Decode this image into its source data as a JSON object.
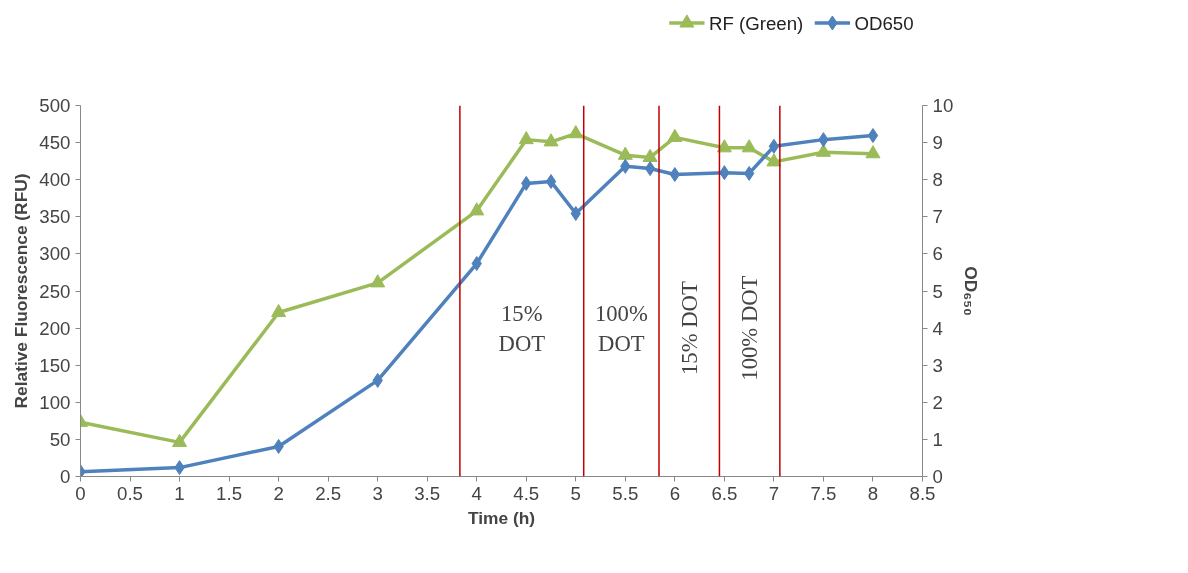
{
  "chart_data": {
    "type": "line",
    "xlabel": "Time (h)",
    "ylabel": "Relative Fluorescence (RFU)",
    "y2label": "OD₆₅₀",
    "xlim": [
      0,
      8.5
    ],
    "xticks": [
      0,
      0.5,
      1,
      1.5,
      2,
      2.5,
      3,
      3.5,
      4,
      4.5,
      5,
      5.5,
      6,
      6.5,
      7,
      7.5,
      8,
      8.5
    ],
    "ylim": [
      0,
      500
    ],
    "yticks": [
      0,
      50,
      100,
      150,
      200,
      250,
      300,
      350,
      400,
      450,
      500
    ],
    "y2lim": [
      0,
      10
    ],
    "y2ticks": [
      0,
      1,
      2,
      3,
      4,
      5,
      6,
      7,
      8,
      9,
      10
    ],
    "x": [
      0,
      1,
      2,
      3,
      4,
      4.5,
      4.75,
      5,
      5.5,
      5.75,
      6,
      6.5,
      6.75,
      7,
      7.5,
      8
    ],
    "series": [
      {
        "name": "RF (Green)",
        "color": "#9bbb59",
        "marker": "triangle",
        "values": [
          73,
          46,
          221,
          261,
          358,
          454,
          451,
          462,
          433,
          430,
          457,
          443,
          443,
          424,
          437,
          435
        ]
      },
      {
        "name": "OD650",
        "color": "#4f81bd",
        "marker": "diamond",
        "axis": "y2",
        "values": [
          0.13,
          0.24,
          0.81,
          2.59,
          5.74,
          7.9,
          7.95,
          7.09,
          8.36,
          8.3,
          8.14,
          8.19,
          8.17,
          8.9,
          9.08,
          9.19
        ]
      }
    ],
    "ref_lines": [
      {
        "axis": "x",
        "value": 3.83,
        "color": "#c00000"
      },
      {
        "axis": "x",
        "value": 5.08,
        "color": "#c00000"
      },
      {
        "axis": "x",
        "value": 5.84,
        "color": "#c00000"
      },
      {
        "axis": "x",
        "value": 6.45,
        "color": "#c00000"
      },
      {
        "axis": "x",
        "value": 7.06,
        "color": "#c00000"
      }
    ],
    "annotations": [
      "15% DOT",
      "100% DOT",
      "15% DOT",
      "100% DOT"
    ],
    "grid": false,
    "legend": "top right"
  }
}
